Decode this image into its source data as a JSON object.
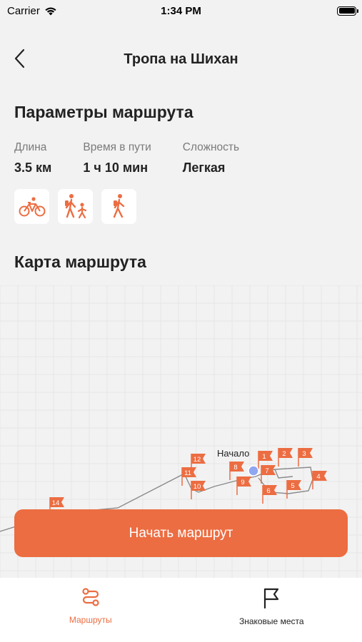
{
  "status": {
    "carrier": "Carrier",
    "time": "1:34 PM"
  },
  "nav": {
    "title": "Тропа на Шихан"
  },
  "params": {
    "title": "Параметры маршрута",
    "items": [
      {
        "label": "Длина",
        "value": "3.5 км"
      },
      {
        "label": "Время в пути",
        "value": "1 ч 10 мин"
      },
      {
        "label": "Сложность",
        "value": "Легкая"
      }
    ]
  },
  "activities": [
    "bicycle-icon",
    "hiking-with-child-icon",
    "hiker-icon"
  ],
  "map": {
    "title": "Карта маршрута",
    "start_label": "Начало",
    "markers": [
      "1",
      "2",
      "3",
      "4",
      "5",
      "6",
      "7",
      "8",
      "9",
      "10",
      "11",
      "12",
      "14"
    ],
    "colors": {
      "flag": "#ec6d42",
      "start": "#8fa6f0",
      "route": "#8a8a8a"
    }
  },
  "actions": {
    "start_route": "Начать маршрут"
  },
  "tabs": [
    {
      "label": "Маршруты",
      "icon": "route-icon",
      "active": true
    },
    {
      "label": "Знаковые места",
      "icon": "flag-icon",
      "active": false
    }
  ],
  "accent": "#ec6d42"
}
